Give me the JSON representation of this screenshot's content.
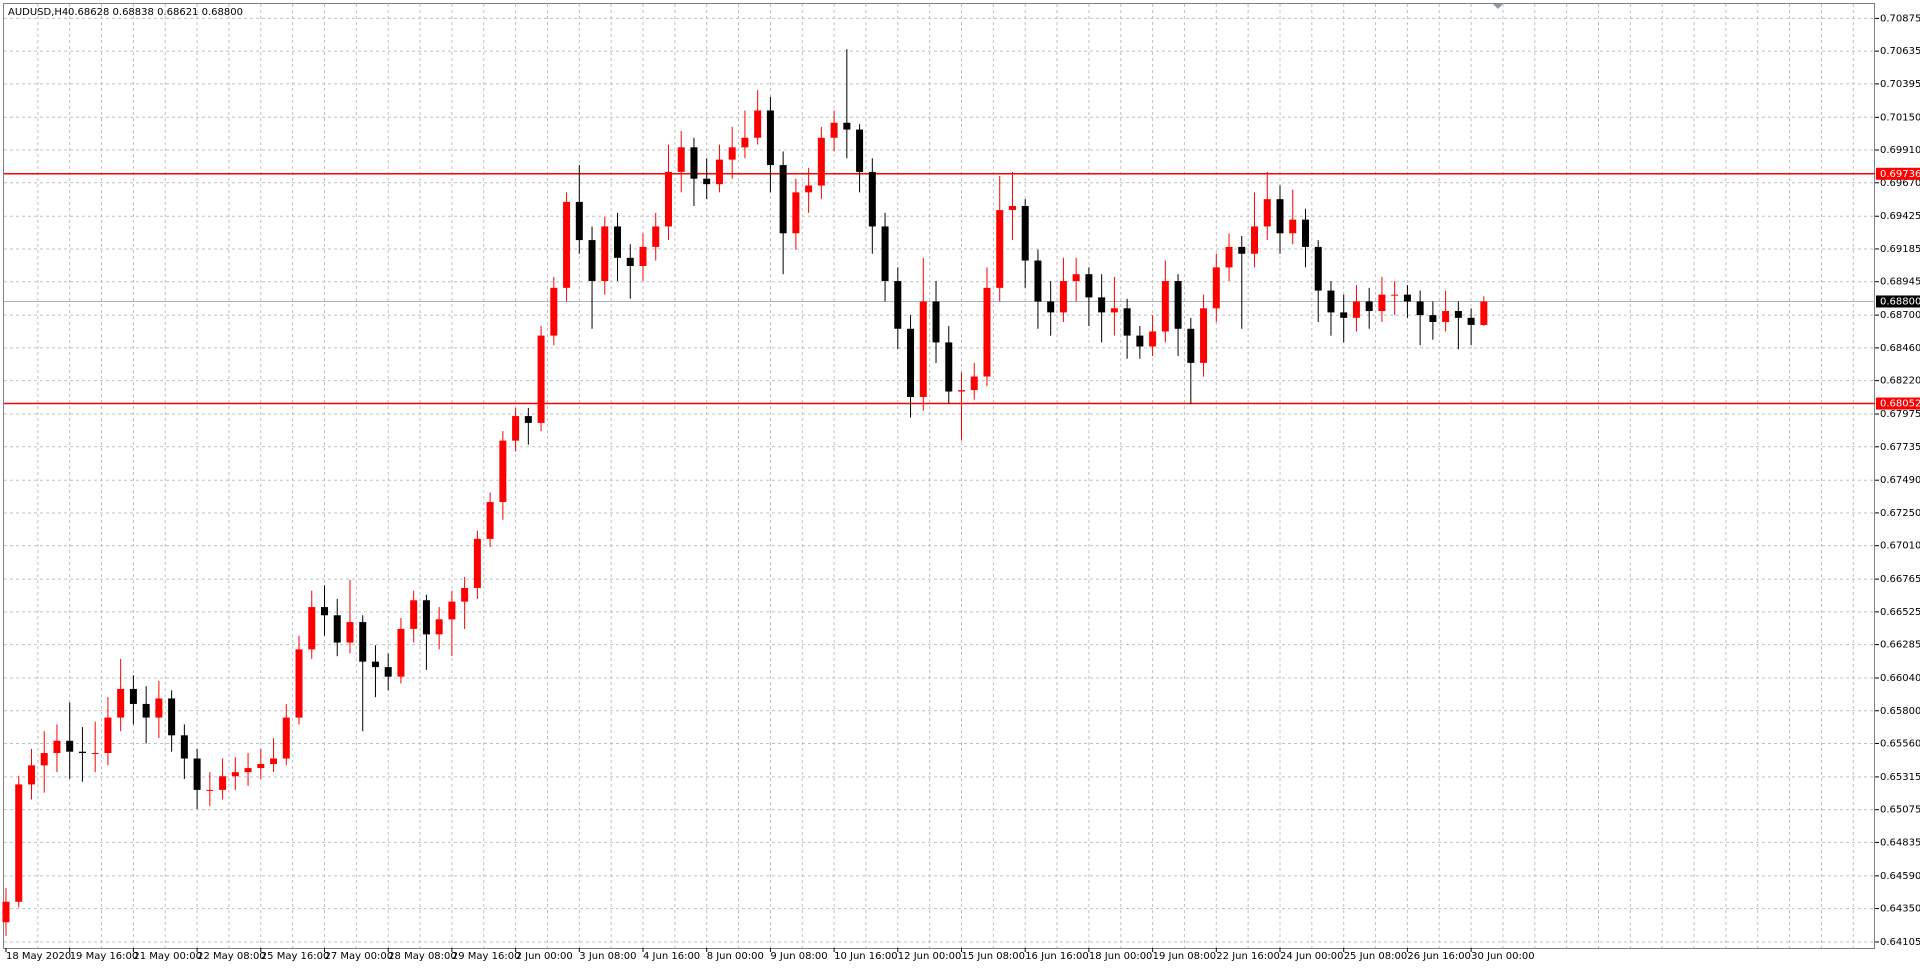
{
  "chart_data": {
    "type": "candlestick",
    "title": "AUDUSD,H4",
    "ohlc": "0.68628 0.68838 0.68621 0.68800",
    "up_color": "#ff0000",
    "down_color": "#000000",
    "level_color": "#ff0000",
    "price_line_color": "#a8b4c0",
    "grid": true,
    "ylim": [
      0.64105,
      0.70875
    ],
    "yticks": [
      0.70875,
      0.70635,
      0.70395,
      {
        "value": 0.7015,
        "label": "0.70150"
      },
      {
        "value": 0.6991,
        "label": "0.69910"
      },
      {
        "value": 0.6967,
        "label": "0.69670"
      },
      0.69425,
      0.69185,
      0.68945,
      {
        "value": 0.687,
        "label": "0.68700"
      },
      {
        "value": 0.6846,
        "label": "0.68460"
      },
      {
        "value": 0.6822,
        "label": "0.68220"
      },
      0.67975,
      0.67735,
      {
        "value": 0.6749,
        "label": "0.67490"
      },
      {
        "value": 0.6725,
        "label": "0.67250"
      },
      {
        "value": 0.6701,
        "label": "0.67010"
      },
      0.66765,
      0.66525,
      0.66285,
      {
        "value": 0.6604,
        "label": "0.66040"
      },
      {
        "value": 0.658,
        "label": "0.65800"
      },
      {
        "value": 0.6556,
        "label": "0.65560"
      },
      0.65315,
      0.65075,
      0.64835,
      {
        "value": 0.6459,
        "label": "0.64590"
      },
      {
        "value": 0.6435,
        "label": "0.64350"
      },
      0.64105
    ],
    "levels": [
      0.69736,
      0.68052
    ],
    "price_line": {
      "value": 0.688,
      "label": "0.68800"
    },
    "x_labels": [
      "18 May 2020",
      "19 May 16:00",
      "21 May 00:00",
      "22 May 08:00",
      "25 May 16:00",
      "27 May 00:00",
      "28 May 08:00",
      "29 May 16:00",
      "2 Jun 00:00",
      "3 Jun 08:00",
      "4 Jun 16:00",
      "8 Jun 00:00",
      "9 Jun 08:00",
      "10 Jun 16:00",
      "12 Jun 00:00",
      "15 Jun 08:00",
      "16 Jun 16:00",
      "18 Jun 00:00",
      "19 Jun 08:00",
      "22 Jun 16:00",
      "24 Jun 00:00",
      "25 Jun 08:00",
      "26 Jun 16:00",
      "30 Jun 00:00"
    ],
    "candles": [
      [
        0.6425,
        0.645,
        0.6415,
        0.644
      ],
      [
        0.644,
        0.6532,
        0.6436,
        0.6526
      ],
      [
        0.6526,
        0.6552,
        0.6515,
        0.654
      ],
      [
        0.654,
        0.6565,
        0.652,
        0.6549
      ],
      [
        0.6549,
        0.657,
        0.6535,
        0.6558
      ],
      [
        0.6558,
        0.6586,
        0.653,
        0.655
      ],
      [
        0.655,
        0.6568,
        0.6528,
        0.6549
      ],
      [
        0.6549,
        0.6572,
        0.6535,
        0.6549
      ],
      [
        0.6549,
        0.659,
        0.654,
        0.6575
      ],
      [
        0.6575,
        0.6618,
        0.6565,
        0.6596
      ],
      [
        0.6596,
        0.6606,
        0.657,
        0.6585
      ],
      [
        0.6585,
        0.6598,
        0.6556,
        0.6575
      ],
      [
        0.6575,
        0.6602,
        0.656,
        0.6589
      ],
      [
        0.6589,
        0.6595,
        0.655,
        0.6562
      ],
      [
        0.6562,
        0.657,
        0.653,
        0.6545
      ],
      [
        0.6545,
        0.6552,
        0.6508,
        0.6522
      ],
      [
        0.6522,
        0.6535,
        0.651,
        0.6522
      ],
      [
        0.6522,
        0.6545,
        0.6515,
        0.6532
      ],
      [
        0.6532,
        0.6546,
        0.6522,
        0.6535
      ],
      [
        0.6535,
        0.6549,
        0.6525,
        0.6538
      ],
      [
        0.6538,
        0.6552,
        0.653,
        0.6541
      ],
      [
        0.6541,
        0.656,
        0.6535,
        0.6545
      ],
      [
        0.6545,
        0.6585,
        0.654,
        0.6575
      ],
      [
        0.6575,
        0.6635,
        0.657,
        0.6625
      ],
      [
        0.6625,
        0.6668,
        0.6618,
        0.6656
      ],
      [
        0.6656,
        0.6672,
        0.6635,
        0.665
      ],
      [
        0.665,
        0.6662,
        0.662,
        0.663
      ],
      [
        0.663,
        0.6676,
        0.6622,
        0.6645
      ],
      [
        0.6645,
        0.665,
        0.6565,
        0.6616
      ],
      [
        0.6616,
        0.6628,
        0.659,
        0.6612
      ],
      [
        0.6612,
        0.6622,
        0.6595,
        0.6605
      ],
      [
        0.6605,
        0.6648,
        0.66,
        0.664
      ],
      [
        0.664,
        0.6668,
        0.663,
        0.6661
      ],
      [
        0.6661,
        0.6665,
        0.661,
        0.6636
      ],
      [
        0.6636,
        0.6656,
        0.6625,
        0.6647
      ],
      [
        0.6647,
        0.6668,
        0.662,
        0.666
      ],
      [
        0.666,
        0.6678,
        0.664,
        0.667
      ],
      [
        0.667,
        0.6712,
        0.6662,
        0.6706
      ],
      [
        0.6706,
        0.674,
        0.67,
        0.6733
      ],
      [
        0.6733,
        0.6785,
        0.672,
        0.6778
      ],
      [
        0.6778,
        0.6802,
        0.677,
        0.6796
      ],
      [
        0.6796,
        0.6802,
        0.6775,
        0.6791
      ],
      [
        0.6791,
        0.6862,
        0.6785,
        0.6855
      ],
      [
        0.6855,
        0.6898,
        0.6848,
        0.689
      ],
      [
        0.689,
        0.696,
        0.688,
        0.6953
      ],
      [
        0.6953,
        0.698,
        0.6915,
        0.6925
      ],
      [
        0.6925,
        0.6935,
        0.686,
        0.6895
      ],
      [
        0.6895,
        0.6942,
        0.6885,
        0.6935
      ],
      [
        0.6935,
        0.6945,
        0.6895,
        0.6912
      ],
      [
        0.6912,
        0.6922,
        0.6882,
        0.6906
      ],
      [
        0.6906,
        0.693,
        0.6895,
        0.692
      ],
      [
        0.692,
        0.6945,
        0.691,
        0.6935
      ],
      [
        0.6935,
        0.6995,
        0.6925,
        0.6975
      ],
      [
        0.6975,
        0.7005,
        0.696,
        0.6993
      ],
      [
        0.6993,
        0.7,
        0.695,
        0.697
      ],
      [
        0.697,
        0.6985,
        0.6955,
        0.6966
      ],
      [
        0.6966,
        0.6995,
        0.696,
        0.6984
      ],
      [
        0.6984,
        0.7008,
        0.697,
        0.6993
      ],
      [
        0.6993,
        0.702,
        0.6985,
        0.7
      ],
      [
        0.7,
        0.7035,
        0.6995,
        0.702
      ],
      [
        0.702,
        0.703,
        0.696,
        0.698
      ],
      [
        0.698,
        0.699,
        0.69,
        0.693
      ],
      [
        0.693,
        0.697,
        0.6918,
        0.696
      ],
      [
        0.696,
        0.6978,
        0.6945,
        0.6965
      ],
      [
        0.6965,
        0.7008,
        0.6955,
        0.7
      ],
      [
        0.7,
        0.702,
        0.699,
        0.7011
      ],
      [
        0.7011,
        0.7065,
        0.6985,
        0.7006
      ],
      [
        0.7006,
        0.701,
        0.696,
        0.6975
      ],
      [
        0.6975,
        0.6985,
        0.6915,
        0.6935
      ],
      [
        0.6935,
        0.6945,
        0.688,
        0.6895
      ],
      [
        0.6895,
        0.6905,
        0.6845,
        0.686
      ],
      [
        0.686,
        0.687,
        0.6795,
        0.681
      ],
      [
        0.681,
        0.6912,
        0.68,
        0.688
      ],
      [
        0.688,
        0.6895,
        0.6835,
        0.685
      ],
      [
        0.685,
        0.6862,
        0.6805,
        0.6814
      ],
      [
        0.6814,
        0.6828,
        0.6778,
        0.6815
      ],
      [
        0.6815,
        0.6835,
        0.6808,
        0.6825
      ],
      [
        0.6825,
        0.6905,
        0.6818,
        0.689
      ],
      [
        0.689,
        0.6972,
        0.688,
        0.6947
      ],
      [
        0.6947,
        0.6975,
        0.6925,
        0.695
      ],
      [
        0.695,
        0.6955,
        0.689,
        0.691
      ],
      [
        0.691,
        0.6918,
        0.686,
        0.688
      ],
      [
        0.688,
        0.6895,
        0.6855,
        0.6872
      ],
      [
        0.6872,
        0.6912,
        0.6865,
        0.6895
      ],
      [
        0.6895,
        0.6912,
        0.688,
        0.69
      ],
      [
        0.69,
        0.6905,
        0.6862,
        0.6883
      ],
      [
        0.6883,
        0.69,
        0.685,
        0.6872
      ],
      [
        0.6872,
        0.6898,
        0.6855,
        0.6875
      ],
      [
        0.6875,
        0.6882,
        0.6838,
        0.6855
      ],
      [
        0.6855,
        0.6862,
        0.6838,
        0.6847
      ],
      [
        0.6847,
        0.687,
        0.684,
        0.6858
      ],
      [
        0.6858,
        0.691,
        0.685,
        0.6895
      ],
      [
        0.6895,
        0.69,
        0.684,
        0.686
      ],
      [
        0.686,
        0.6868,
        0.6805,
        0.6835
      ],
      [
        0.6835,
        0.6885,
        0.6825,
        0.6875
      ],
      [
        0.6875,
        0.6915,
        0.6865,
        0.6905
      ],
      [
        0.6905,
        0.693,
        0.6895,
        0.692
      ],
      [
        0.692,
        0.6928,
        0.686,
        0.6915
      ],
      [
        0.6915,
        0.696,
        0.6905,
        0.6935
      ],
      [
        0.6935,
        0.6975,
        0.6925,
        0.6955
      ],
      [
        0.6955,
        0.6965,
        0.6915,
        0.693
      ],
      [
        0.693,
        0.6962,
        0.6922,
        0.694
      ],
      [
        0.694,
        0.6948,
        0.6905,
        0.692
      ],
      [
        0.692,
        0.6925,
        0.6865,
        0.6888
      ],
      [
        0.6888,
        0.6895,
        0.6855,
        0.6872
      ],
      [
        0.6872,
        0.6885,
        0.685,
        0.6868
      ],
      [
        0.6868,
        0.6892,
        0.6858,
        0.688
      ],
      [
        0.688,
        0.689,
        0.686,
        0.6873
      ],
      [
        0.6873,
        0.6898,
        0.6865,
        0.6885
      ],
      [
        0.6885,
        0.6895,
        0.687,
        0.6885
      ],
      [
        0.6885,
        0.6892,
        0.6868,
        0.688
      ],
      [
        0.688,
        0.6888,
        0.6848,
        0.687
      ],
      [
        0.687,
        0.688,
        0.6852,
        0.6865
      ],
      [
        0.6865,
        0.6888,
        0.6858,
        0.6873
      ],
      [
        0.6873,
        0.688,
        0.6845,
        0.6868
      ],
      [
        0.6868,
        0.6875,
        0.6848,
        0.68628
      ],
      [
        0.68628,
        0.68838,
        0.68621,
        0.688
      ]
    ]
  }
}
